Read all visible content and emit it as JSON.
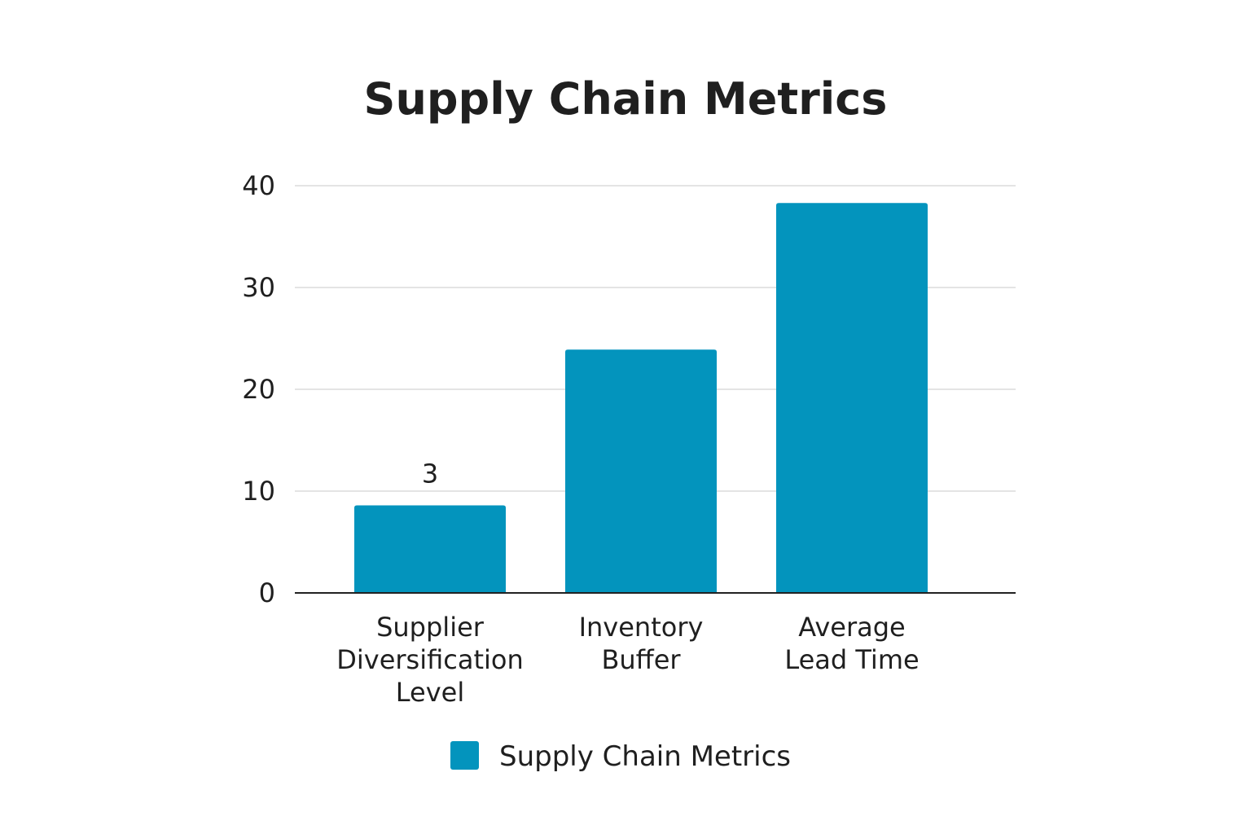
{
  "chart_data": {
    "type": "bar",
    "title": "Supply Chain Metrics",
    "xlabel": "",
    "ylabel": "",
    "categories": [
      "Supplier Diversification Level",
      "Inventory Buffer",
      "Average Lead Time"
    ],
    "category_lines": [
      [
        "Supplier",
        "Diversification",
        "Level"
      ],
      [
        "Inventory",
        "Buffer"
      ],
      [
        "Average",
        "Lead Time"
      ]
    ],
    "series": [
      {
        "name": "Supply Chain Metrics",
        "values": [
          8.6,
          23.9,
          38.3
        ],
        "color": "#0394bd"
      }
    ],
    "data_labels": [
      "3",
      "",
      ""
    ],
    "ylim": [
      0,
      40
    ],
    "yticks": [
      0,
      10,
      20,
      30,
      40
    ],
    "grid": true,
    "legend": "bottom-center"
  }
}
